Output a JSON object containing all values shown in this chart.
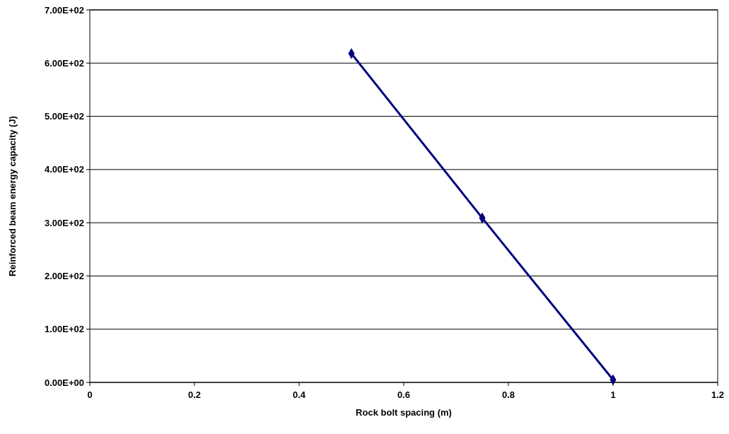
{
  "chart_data": {
    "type": "line",
    "xlabel": "Rock bolt spacing (m)",
    "ylabel": "Reinforced beam energy capacity (J)",
    "x": [
      0.5,
      0.75,
      1
    ],
    "series": [
      {
        "color": "#000080",
        "values": [
          618,
          309,
          5
        ]
      }
    ],
    "xlim": [
      0,
      1.2
    ],
    "xticks": [
      0,
      0.2,
      0.4,
      0.6,
      0.8,
      1,
      1.2
    ],
    "ylim": [
      0,
      700
    ],
    "yticks": [
      {
        "value": 0,
        "label": "0.00E+00"
      },
      {
        "value": 100,
        "label": "1.00E+02"
      },
      {
        "value": 200,
        "label": "2.00E+02"
      },
      {
        "value": 300,
        "label": "3.00E+02"
      },
      {
        "value": 400,
        "label": "4.00E+02"
      },
      {
        "value": 500,
        "label": "5.00E+02"
      },
      {
        "value": 600,
        "label": "6.00E+02"
      },
      {
        "value": 700,
        "label": "7.00E+02"
      }
    ],
    "grid": "y",
    "marker": "diamond",
    "line_style": "solid"
  }
}
